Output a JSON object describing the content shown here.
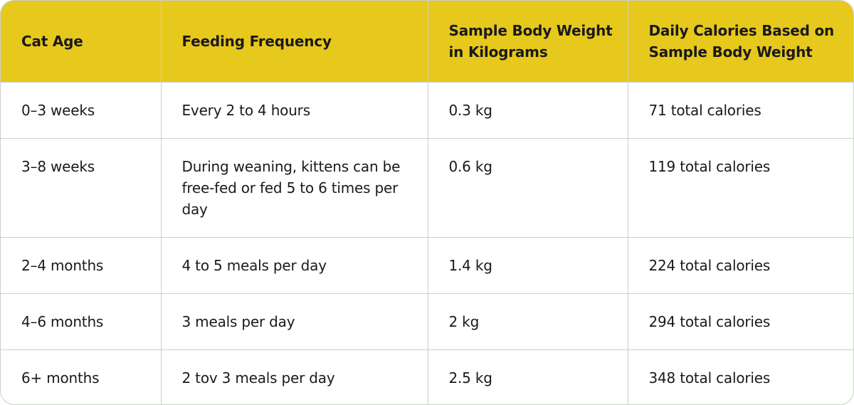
{
  "table": {
    "header": [
      "Cat Age",
      "Feeding Frequency",
      "Sample Body Weight in Kilograms",
      "Daily Calories Based on Sample Body Weight"
    ],
    "rows": [
      [
        "0–3 weeks",
        "Every 2 to 4 hours",
        "0.3 kg",
        "71 total calories"
      ],
      [
        "3–8 weeks",
        "During weaning, kittens can be free-fed or fed 5 to 6 times per day",
        "0.6 kg",
        "119 total calories"
      ],
      [
        "2–4 months",
        "4 to 5 meals per day",
        "1.4 kg",
        "224 total calories"
      ],
      [
        "4–6 months",
        "3 meals per day",
        "2 kg",
        "294 total calories"
      ],
      [
        "6+ months",
        "2 tov 3 meals per day",
        "2.5 kg",
        "348 total calories"
      ]
    ]
  }
}
